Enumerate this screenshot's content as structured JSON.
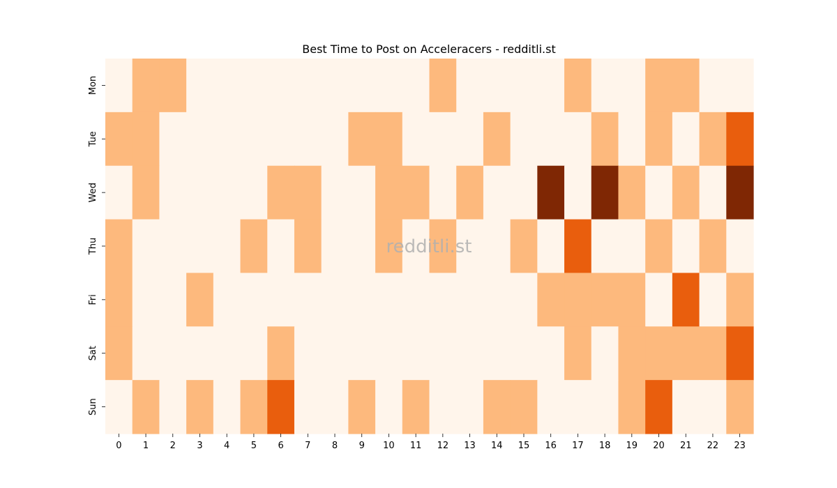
{
  "chart_data": {
    "type": "heatmap",
    "title": "Best Time to Post on Acceleracers - redditli.st",
    "watermark": "redditli.st",
    "x_categories": [
      "0",
      "1",
      "2",
      "3",
      "4",
      "5",
      "6",
      "7",
      "8",
      "9",
      "10",
      "11",
      "12",
      "13",
      "14",
      "15",
      "16",
      "17",
      "18",
      "19",
      "20",
      "21",
      "22",
      "23"
    ],
    "y_categories": [
      "Mon",
      "Tue",
      "Wed",
      "Thu",
      "Fri",
      "Sat",
      "Sun"
    ],
    "values": [
      [
        0,
        1,
        1,
        0,
        0,
        0,
        0,
        0,
        0,
        0,
        0,
        0,
        1,
        0,
        0,
        0,
        0,
        1,
        0,
        0,
        1,
        1,
        0,
        0
      ],
      [
        1,
        1,
        0,
        0,
        0,
        0,
        0,
        0,
        0,
        1,
        1,
        0,
        0,
        0,
        1,
        0,
        0,
        0,
        1,
        0,
        1,
        0,
        1,
        2
      ],
      [
        0,
        1,
        0,
        0,
        0,
        0,
        1,
        1,
        0,
        0,
        1,
        1,
        0,
        1,
        0,
        0,
        3,
        0,
        3,
        1,
        0,
        1,
        0,
        3
      ],
      [
        1,
        0,
        0,
        0,
        0,
        1,
        0,
        1,
        0,
        0,
        1,
        0,
        1,
        0,
        0,
        1,
        0,
        2,
        0,
        0,
        1,
        0,
        1,
        0
      ],
      [
        1,
        0,
        0,
        1,
        0,
        0,
        0,
        0,
        0,
        0,
        0,
        0,
        0,
        0,
        0,
        0,
        1,
        1,
        1,
        1,
        0,
        2,
        0,
        1
      ],
      [
        1,
        0,
        0,
        0,
        0,
        0,
        1,
        0,
        0,
        0,
        0,
        0,
        0,
        0,
        0,
        0,
        0,
        1,
        0,
        1,
        1,
        1,
        1,
        2
      ],
      [
        0,
        1,
        0,
        1,
        0,
        1,
        2,
        0,
        0,
        1,
        0,
        1,
        0,
        0,
        1,
        1,
        0,
        0,
        0,
        1,
        2,
        0,
        0,
        1
      ]
    ],
    "color_levels": [
      "#fff5eb",
      "#fdb97d",
      "#e95e0d",
      "#7f2704"
    ],
    "grid": false,
    "legend": "none"
  }
}
